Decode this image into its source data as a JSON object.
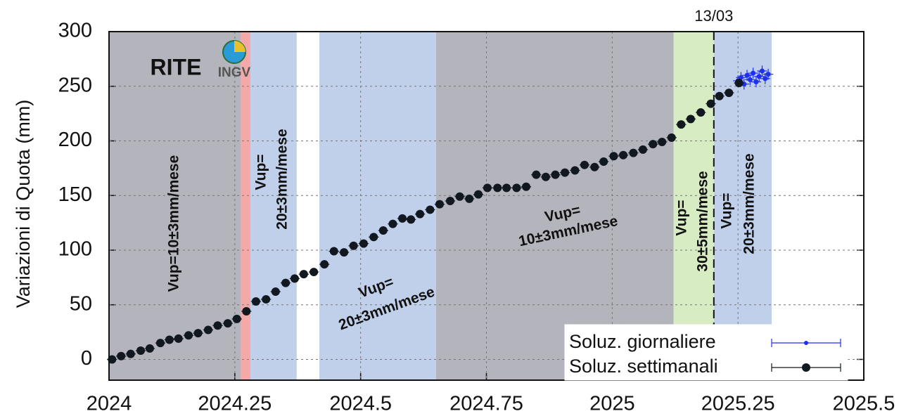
{
  "chart_data": {
    "type": "scatter",
    "station": "RITE",
    "logo_text": "INGV",
    "ylabel": "Variazioni di Quota (mm)",
    "xlim": [
      2024,
      2025.5
    ],
    "ylim": [
      -19,
      300
    ],
    "xticks": [
      2024,
      2024.25,
      2024.5,
      2024.75,
      2025,
      2025.25,
      2025.5
    ],
    "yticks": [
      0,
      50,
      100,
      150,
      200,
      250,
      300
    ],
    "grid": true,
    "legend": "lower right",
    "regions": [
      {
        "x0": 2024,
        "x1": 2024.262,
        "color": "#b4b4bc"
      },
      {
        "x0": 2024.262,
        "x1": 2024.281,
        "color": "#f4a8a8"
      },
      {
        "x0": 2024.281,
        "x1": 2024.373,
        "color": "#c0d0ea"
      },
      {
        "x0": 2024.418,
        "x1": 2024.65,
        "color": "#c0d0ea"
      },
      {
        "x0": 2024.65,
        "x1": 2025.122,
        "color": "#b4b4bc"
      },
      {
        "x0": 2025.122,
        "x1": 2025.202,
        "color": "#d8ecc4"
      },
      {
        "x0": 2025.202,
        "x1": 2025.317,
        "color": "#c0d0ea"
      }
    ],
    "marker": {
      "x": 2025.202,
      "label": "13/03"
    },
    "annotations": [
      [
        "Vup=10±3mm/mese"
      ],
      [
        "Vup=",
        "20±3mm/mese"
      ],
      [
        "Vup=",
        "20±3mm/mese"
      ],
      [
        "Vup=",
        "10±3mm/mese"
      ],
      [
        "Vup=",
        "30±5mm/mese"
      ],
      [
        "Vup=",
        "20±3mm/mese"
      ]
    ],
    "series": [
      {
        "name": "Soluz. giornaliere",
        "color": "#1f2ff0",
        "xerr": 0.01,
        "yerr": 5,
        "x": [
          2025.25,
          2025.256,
          2025.262,
          2025.268,
          2025.274,
          2025.28,
          2025.286,
          2025.292,
          2025.298,
          2025.304,
          2025.31
        ],
        "values": [
          255,
          258,
          252,
          260,
          256,
          262,
          254,
          259,
          264,
          257,
          261
        ]
      },
      {
        "name": "Soluz. settimanali",
        "color": "#111820",
        "xerr": 0.01,
        "yerr": 3,
        "x": [
          2024.006,
          2024.024,
          2024.043,
          2024.063,
          2024.081,
          2024.102,
          2024.12,
          2024.138,
          2024.158,
          2024.177,
          2024.197,
          2024.216,
          2024.236,
          2024.254,
          2024.273,
          2024.292,
          2024.312,
          2024.331,
          2024.351,
          2024.369,
          2024.387,
          2024.407,
          2024.428,
          2024.447,
          2024.467,
          2024.486,
          2024.506,
          2024.526,
          2024.545,
          2024.564,
          2024.583,
          2024.6,
          2024.618,
          2024.638,
          2024.657,
          2024.678,
          2024.697,
          2024.716,
          2024.734,
          2024.752,
          2024.772,
          2024.79,
          2024.81,
          2024.829,
          2024.849,
          2024.868,
          2024.887,
          2024.906,
          2024.926,
          2024.945,
          2024.965,
          2024.983,
          2025.003,
          2025.022,
          2025.042,
          2025.061,
          2025.081,
          2025.099,
          2025.118,
          2025.137,
          2025.156,
          2025.176,
          2025.196,
          2025.213,
          2025.232,
          2025.252
        ],
        "values": [
          0,
          3,
          5,
          8,
          10,
          15,
          18,
          19,
          22,
          24,
          27,
          31,
          33,
          37,
          44,
          53,
          55,
          62,
          70,
          74,
          78,
          80,
          87,
          99,
          98,
          104,
          106,
          112,
          118,
          124,
          129,
          128,
          133,
          137,
          142,
          145,
          149,
          147,
          151,
          157,
          157,
          157,
          157,
          158,
          169,
          167,
          169,
          171,
          173,
          178,
          176,
          181,
          186,
          187,
          189,
          192,
          197,
          199,
          203,
          215,
          220,
          226,
          234,
          241,
          244,
          253
        ]
      }
    ]
  }
}
